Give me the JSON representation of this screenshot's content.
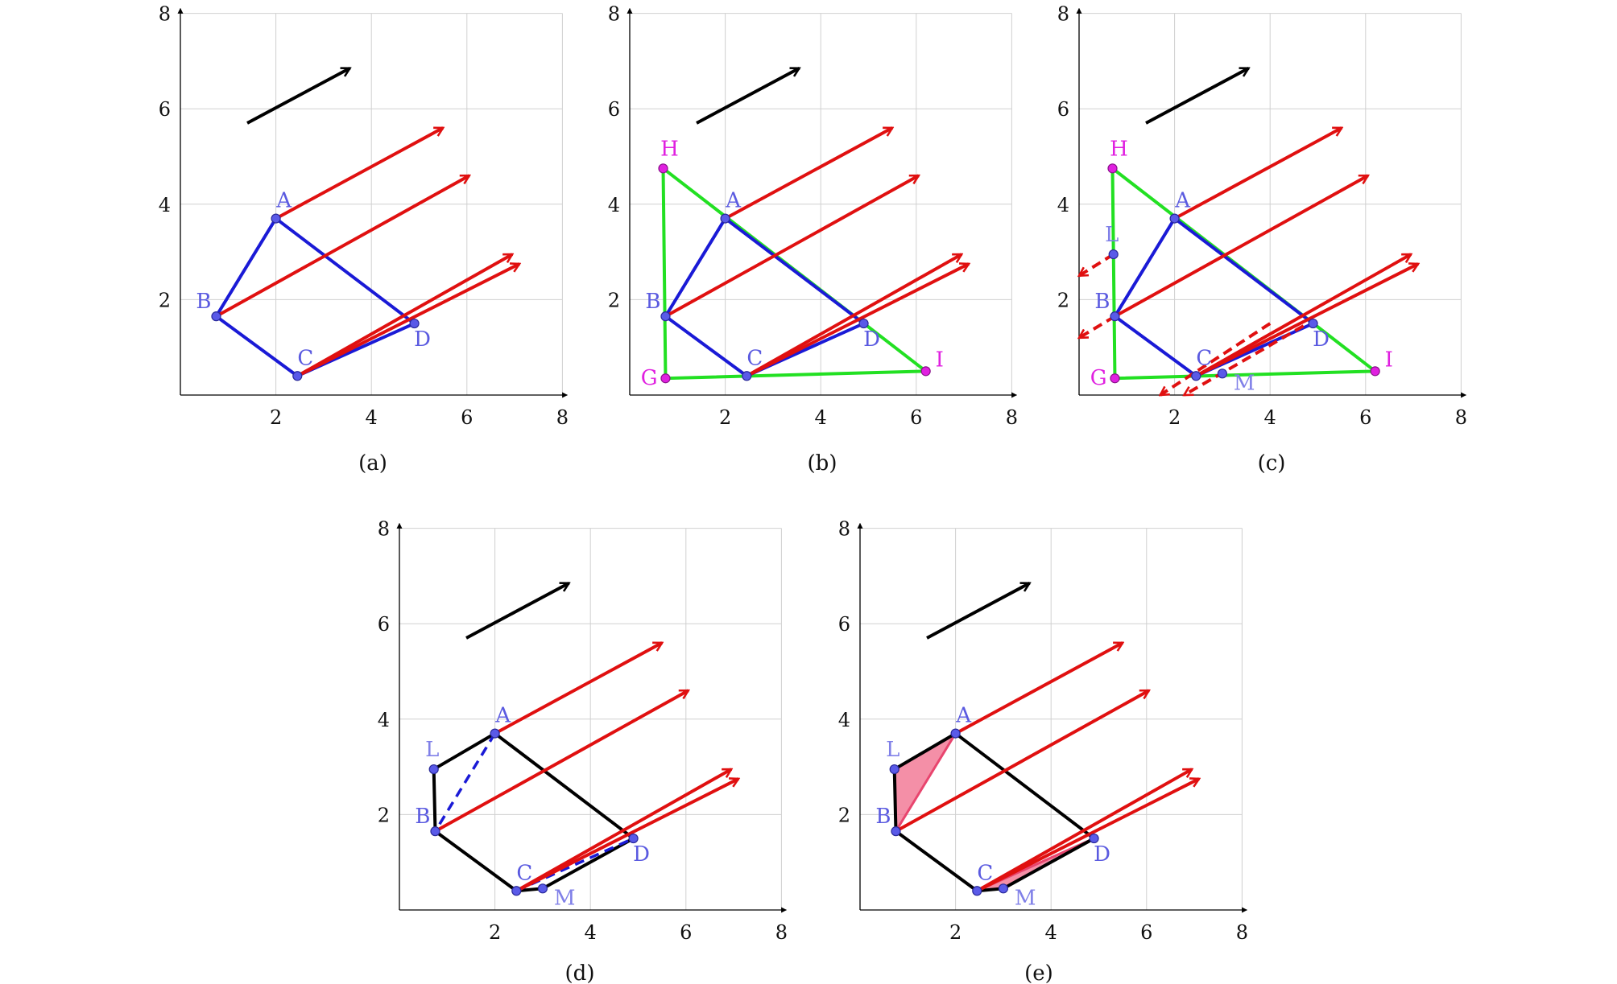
{
  "axis": {
    "min": 0,
    "max": 8,
    "ticks": [
      2,
      4,
      6,
      8
    ],
    "grid": true
  },
  "colors": {
    "grid": "#d0d0d0",
    "axis": "#000000",
    "blue_point": "#5a5ae8",
    "blue_point_stroke": "#2a2a9a",
    "blue_label": "#5a5ae0",
    "blue_light_label": "#8080e8",
    "blue_edge": "#1a1ad6",
    "magenta": "#e020e0",
    "green": "#22e022",
    "red": "#e01010",
    "black": "#000000",
    "pink_fill": "#f06a8a",
    "pink_stroke": "#e8456e"
  },
  "points": {
    "A": [
      2.0,
      3.7
    ],
    "B": [
      0.75,
      1.65
    ],
    "C": [
      2.45,
      0.4
    ],
    "D": [
      4.9,
      1.5
    ],
    "H": [
      0.7,
      4.75
    ],
    "G": [
      0.75,
      0.35
    ],
    "I": [
      6.2,
      0.5
    ],
    "L": [
      0.72,
      2.95
    ],
    "M": [
      3.0,
      0.45
    ]
  },
  "direction_arrow": {
    "from": [
      1.4,
      5.7
    ],
    "to": [
      3.55,
      6.85
    ]
  },
  "red_rays": [
    {
      "from": "A",
      "to": [
        5.5,
        5.6
      ]
    },
    {
      "from": "B",
      "to": [
        6.05,
        4.6
      ]
    },
    {
      "from": "C",
      "to": [
        6.95,
        2.95
      ]
    },
    {
      "from": "C",
      "to": [
        7.1,
        2.75
      ]
    }
  ],
  "dashed_rays_c": [
    {
      "from": [
        0.72,
        2.95
      ],
      "to": [
        0.0,
        2.5
      ]
    },
    {
      "from": [
        0.75,
        1.65
      ],
      "to": [
        0.0,
        1.2
      ]
    },
    {
      "from": [
        4.0,
        1.5
      ],
      "to": [
        1.7,
        0.0
      ]
    },
    {
      "from": [
        4.7,
        1.45
      ],
      "to": [
        2.2,
        0.0
      ]
    }
  ],
  "panels": [
    {
      "id": "a",
      "caption": "(a)"
    },
    {
      "id": "b",
      "caption": "(b)"
    },
    {
      "id": "c",
      "caption": "(c)"
    },
    {
      "id": "d",
      "caption": "(d)"
    },
    {
      "id": "e",
      "caption": "(e)"
    }
  ],
  "labels": {
    "A": "A",
    "B": "B",
    "C": "C",
    "D": "D",
    "H": "H",
    "G": "G",
    "I": "I",
    "L": "L",
    "M": "M"
  }
}
